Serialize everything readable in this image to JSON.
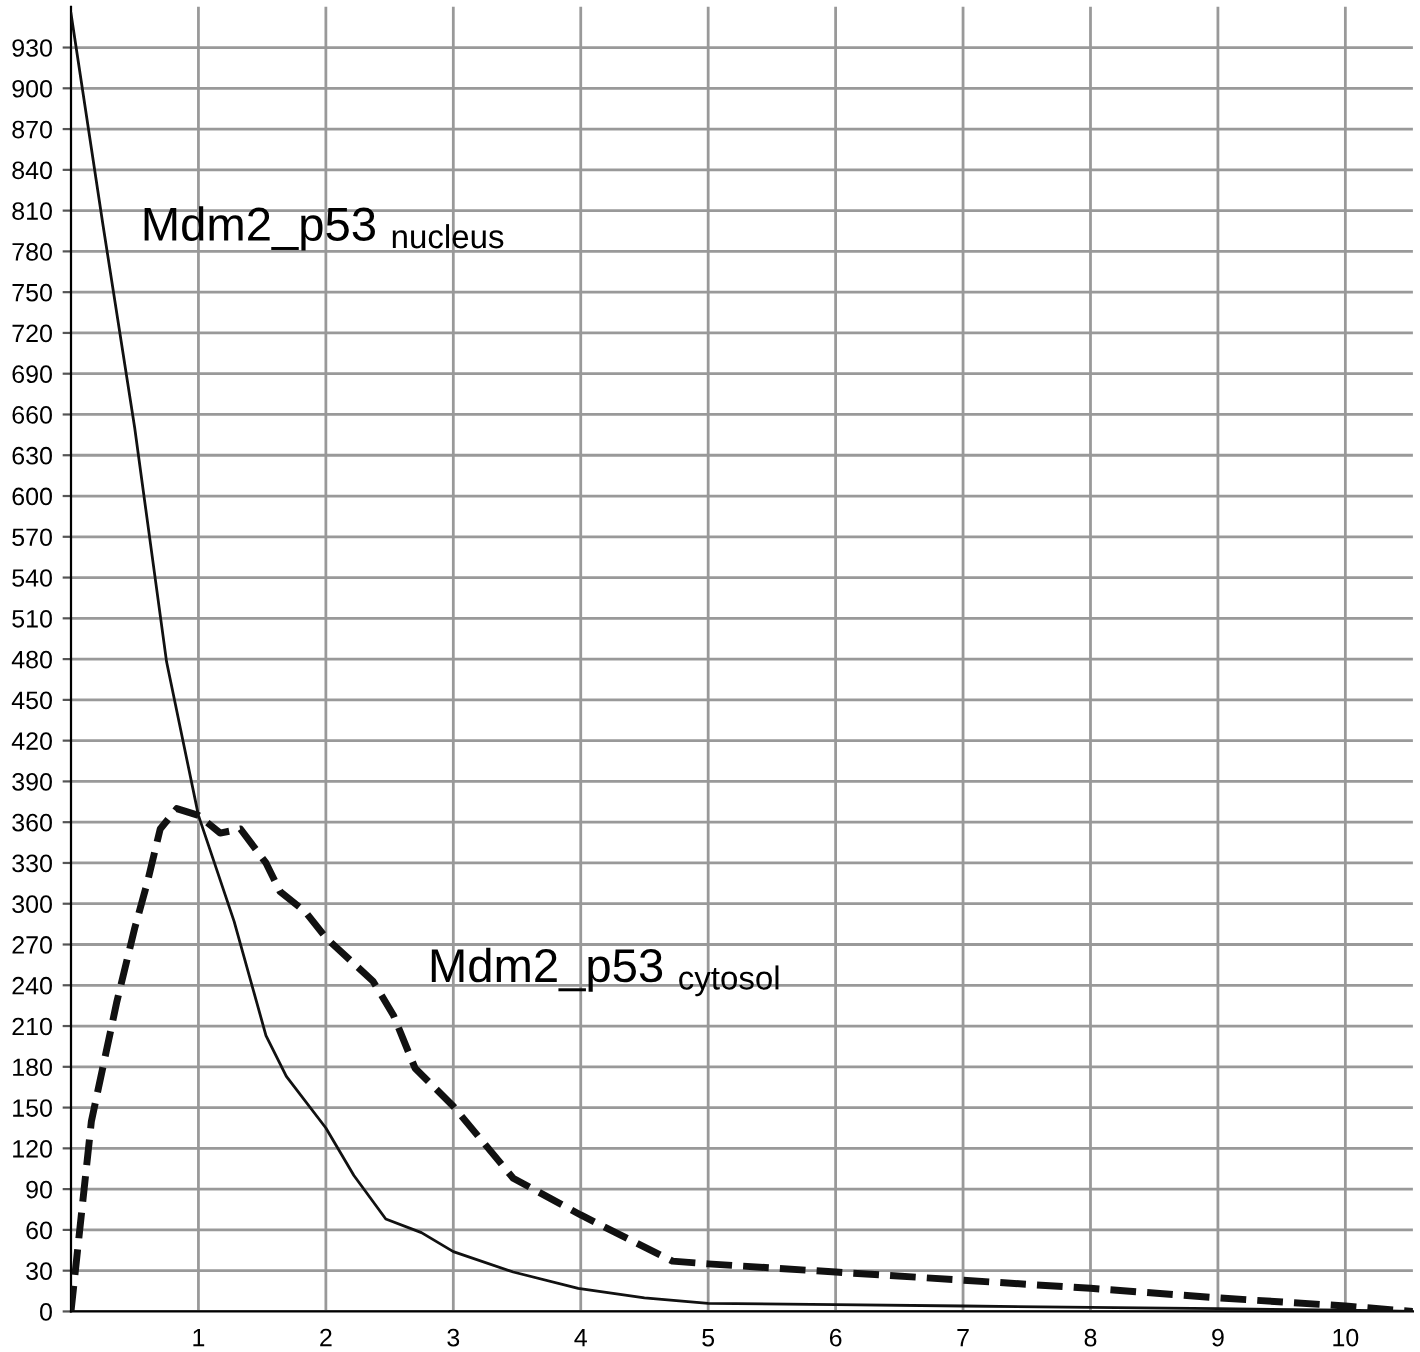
{
  "chart_data": {
    "type": "line",
    "xlim": [
      0,
      10.53
    ],
    "ylim": [
      0,
      960
    ],
    "xticks": [
      1,
      2,
      3,
      4,
      5,
      6,
      7,
      8,
      9,
      10
    ],
    "yticks": [
      0,
      30,
      60,
      90,
      120,
      150,
      180,
      210,
      240,
      270,
      300,
      330,
      360,
      390,
      420,
      450,
      480,
      510,
      540,
      570,
      600,
      630,
      660,
      690,
      720,
      750,
      780,
      810,
      840,
      870,
      900,
      930
    ],
    "grid": true,
    "series": [
      {
        "color": "#111111",
        "line_style": "solid",
        "x": [
          0,
          0.25,
          0.5,
          0.75,
          1,
          1.28,
          1.53,
          1.69,
          2,
          2.22,
          2.47,
          2.75,
          3,
          3.47,
          3.98,
          4.5,
          5,
          6,
          7,
          8,
          9,
          10,
          10.53
        ],
        "values": [
          955,
          800,
          650,
          478,
          365,
          287,
          203,
          173,
          135,
          100,
          68,
          58,
          44,
          29,
          17,
          10,
          6,
          5,
          4,
          3,
          2,
          1,
          0
        ]
      },
      {
        "color": "#111111",
        "line_style": "dashed",
        "x": [
          0,
          0.16,
          0.36,
          0.5,
          0.6,
          0.7,
          0.83,
          1,
          1.17,
          1.33,
          1.53,
          1.64,
          1.84,
          2,
          2.37,
          2.53,
          2.7,
          3,
          3.47,
          4,
          4.72,
          5,
          6,
          7,
          8,
          9,
          10,
          10.53
        ],
        "values": [
          0,
          140,
          228,
          282,
          316,
          355,
          370,
          365,
          352,
          355,
          330,
          309,
          294,
          275,
          243,
          218,
          179,
          151,
          98,
          71,
          37,
          35,
          29,
          23,
          17,
          10,
          4,
          0
        ]
      }
    ],
    "annotations": [
      "Mdm2_p53 $_{nucleus}$",
      "Mdm2_p53 $_{cytosol}$"
    ]
  }
}
